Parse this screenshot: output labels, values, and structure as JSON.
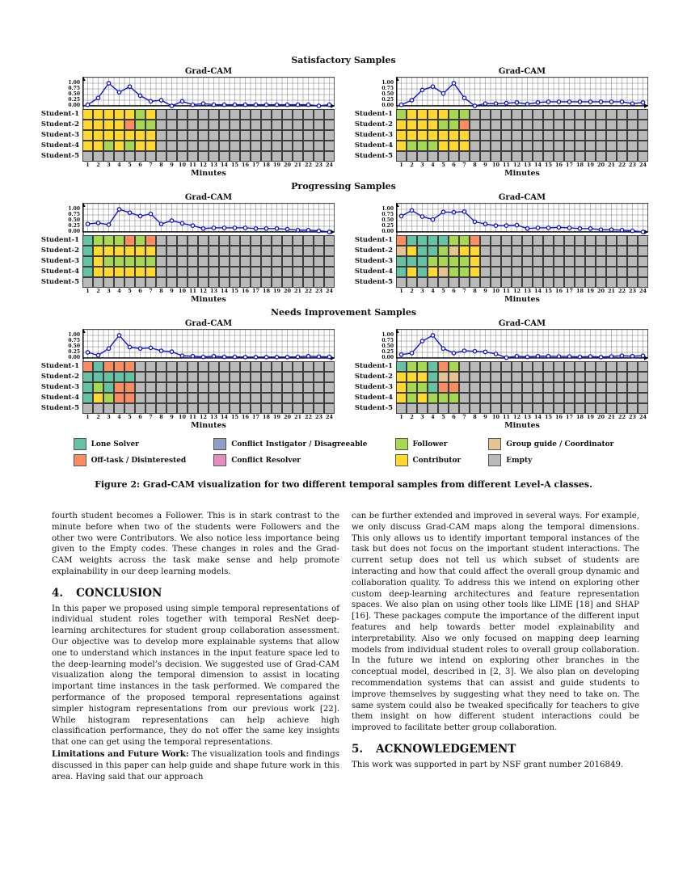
{
  "roles": {
    "LS": {
      "label": "Lone Solver",
      "color": "#66c2a5"
    },
    "OT": {
      "label": "Off-task / Disinterested",
      "color": "#fc8d62"
    },
    "CI": {
      "label": "Conflict Instigator / Disagreeable",
      "color": "#8da0cb"
    },
    "CR": {
      "label": "Conflict Resolver",
      "color": "#e78ac3"
    },
    "F": {
      "label": "Follower",
      "color": "#a6d854"
    },
    "C": {
      "label": "Contributor",
      "color": "#ffd92f"
    },
    "G": {
      "label": "Group guide / Coordinator",
      "color": "#e5c494"
    },
    "E": {
      "label": "Empty",
      "color": "#b9b9b9"
    }
  },
  "legend_columns": [
    [
      "LS",
      "OT"
    ],
    [
      "CI",
      "CR"
    ],
    [
      "F",
      "C"
    ],
    [
      "G",
      "E"
    ]
  ],
  "figure": {
    "sections": [
      {
        "header": "Satisfactory Samples"
      },
      {
        "header": "Progressing Samples"
      },
      {
        "header": "Needs Improvement Samples"
      }
    ]
  },
  "chart_data": [
    {
      "type": "line+heatmap",
      "panel": "satisfactory-left",
      "title": "Grad-CAM",
      "xlabel": "Minutes",
      "x": [
        1,
        2,
        3,
        4,
        5,
        6,
        7,
        8,
        9,
        10,
        11,
        12,
        13,
        14,
        15,
        16,
        17,
        18,
        19,
        20,
        21,
        22,
        23,
        24
      ],
      "y_ticks": [
        "1.00",
        "0.75",
        "0.50",
        "0.25",
        "0.00"
      ],
      "ylim": [
        0,
        1.25
      ],
      "line": [
        0.05,
        0.35,
        1.0,
        0.6,
        0.85,
        0.45,
        0.2,
        0.25,
        0.0,
        0.2,
        0.05,
        0.1,
        0.05,
        0.05,
        0.05,
        0.05,
        0.05,
        0.05,
        0.05,
        0.05,
        0.05,
        0.05,
        0.0,
        0.05
      ],
      "students": [
        "Student-1",
        "Student-2",
        "Student-3",
        "Student-4",
        "Student-5"
      ],
      "grid": [
        "C C C C C F C E E E E E E E E E E E E E E E E E",
        "C C C C OT F F E E E E E E E E E E E E E E E E E",
        "C C C C C C C E E E E E E E E E E E E E E E E E",
        "C C F C F C C E E E E E E E E E E E E E E E E E",
        "E E E E E E E E E E E E E E E E E E E E E E E E"
      ]
    },
    {
      "type": "line+heatmap",
      "panel": "satisfactory-right",
      "title": "Grad-CAM",
      "xlabel": "Minutes",
      "x": [
        1,
        2,
        3,
        4,
        5,
        6,
        7,
        8,
        9,
        10,
        11,
        12,
        13,
        14,
        15,
        16,
        17,
        18,
        19,
        20,
        21,
        22,
        23,
        24
      ],
      "y_ticks": [
        "1.00",
        "0.75",
        "0.50",
        "0.25",
        "0.00"
      ],
      "ylim": [
        0,
        1.25
      ],
      "line": [
        0.05,
        0.25,
        0.7,
        0.85,
        0.55,
        1.0,
        0.35,
        0.0,
        0.1,
        0.1,
        0.12,
        0.15,
        0.08,
        0.15,
        0.18,
        0.18,
        0.18,
        0.18,
        0.18,
        0.18,
        0.18,
        0.18,
        0.1,
        0.15
      ],
      "students": [
        "Student-1",
        "Student-2",
        "Student-3",
        "Student-4",
        "Student-5"
      ],
      "grid": [
        "F C C C C F F E E E E E E E E E E E E E E E E E",
        "C C C C F F OT E E E E E E E E E E E E E E E E E",
        "C C C C C C C E E E E E E E E E E E E E E E E E",
        "C F F F C C C E E E E E E E E E E E E E E E E E",
        "E E E E E E E E E E E E E E E E E E E E E E E E"
      ]
    },
    {
      "type": "line+heatmap",
      "panel": "progressing-left",
      "title": "Grad-CAM",
      "xlabel": "Minutes",
      "x": [
        1,
        2,
        3,
        4,
        5,
        6,
        7,
        8,
        9,
        10,
        11,
        12,
        13,
        14,
        15,
        16,
        17,
        18,
        19,
        20,
        21,
        22,
        23,
        24
      ],
      "y_ticks": [
        "1.00",
        "0.75",
        "0.50",
        "0.25",
        "0.00"
      ],
      "ylim": [
        0,
        1.25
      ],
      "line": [
        0.35,
        0.4,
        0.32,
        1.0,
        0.85,
        0.7,
        0.8,
        0.35,
        0.5,
        0.38,
        0.28,
        0.15,
        0.18,
        0.18,
        0.18,
        0.18,
        0.15,
        0.15,
        0.15,
        0.12,
        0.08,
        0.08,
        0.05,
        0.0
      ],
      "students": [
        "Student-1",
        "Student-2",
        "Student-3",
        "Student-4",
        "Student-5"
      ],
      "grid": [
        "LS F F F OT F OT E E E E E E E E E E E E E E E E E",
        "LS C C C C C C E E E E E E E E E E E E E E E E E",
        "LS C F F F F F E E E E E E E E E E E E E E E E E",
        "LS C C C C C C E E E E E E E E E E E E E E E E E",
        "E E E E E E E E E E E E E E E E E E E E E E E E"
      ]
    },
    {
      "type": "line+heatmap",
      "panel": "progressing-right",
      "title": "Grad-CAM",
      "xlabel": "Minutes",
      "x": [
        1,
        2,
        3,
        4,
        5,
        6,
        7,
        8,
        9,
        10,
        11,
        12,
        13,
        14,
        15,
        16,
        17,
        18,
        19,
        20,
        21,
        22,
        23,
        24
      ],
      "y_ticks": [
        "1.00",
        "0.75",
        "0.50",
        "0.25",
        "0.00"
      ],
      "ylim": [
        0,
        1.25
      ],
      "line": [
        0.7,
        0.95,
        0.68,
        0.55,
        0.88,
        0.87,
        0.9,
        0.45,
        0.35,
        0.28,
        0.28,
        0.3,
        0.15,
        0.18,
        0.18,
        0.2,
        0.18,
        0.15,
        0.15,
        0.1,
        0.1,
        0.08,
        0.05,
        0.0
      ],
      "students": [
        "Student-1",
        "Student-2",
        "Student-3",
        "Student-4",
        "Student-5"
      ],
      "grid": [
        "OT LS LS LS LS F F OT E E E E E E E E E E E E E E E E",
        "G C LS LS F G C C E E E E E E E E E E E E E E E E",
        "LS LS LS F F F F C E E E E E E E E E E E E E E E E",
        "LS C LS C G F F C E E E E E E E E E E E E E E E E",
        "E E E E E E E E E E E E E E E E E E E E E E E E"
      ]
    },
    {
      "type": "line+heatmap",
      "panel": "needs-improvement-left",
      "title": "Grad-CAM",
      "xlabel": "Minutes",
      "x": [
        1,
        2,
        3,
        4,
        5,
        6,
        7,
        8,
        9,
        10,
        11,
        12,
        13,
        14,
        15,
        16,
        17,
        18,
        19,
        20,
        21,
        22,
        23,
        24
      ],
      "y_ticks": [
        "1.00",
        "0.75",
        "0.50",
        "0.25",
        "0.00"
      ],
      "ylim": [
        0,
        1.25
      ],
      "line": [
        0.25,
        0.12,
        0.42,
        1.0,
        0.48,
        0.42,
        0.45,
        0.32,
        0.28,
        0.1,
        0.08,
        0.05,
        0.08,
        0.05,
        0.05,
        0.04,
        0.04,
        0.04,
        0.04,
        0.04,
        0.05,
        0.08,
        0.06,
        0.05
      ],
      "students": [
        "Student-1",
        "Student-2",
        "Student-3",
        "Student-4",
        "Student-5"
      ],
      "grid": [
        "OT LS OT OT OT E E E E E E E E E E E E E E E E E E E",
        "LS LS LS LS LS E E E E E E E E E E E E E E E E E E E",
        "LS F LS OT OT E E E E E E E E E E E E E E E E E E E",
        "LS C F OT OT E E E E E E E E E E E E E E E E E E E",
        "E E E E E E E E E E E E E E E E E E E E E E E E"
      ]
    },
    {
      "type": "line+heatmap",
      "panel": "needs-improvement-right",
      "title": "Grad-CAM",
      "xlabel": "Minutes",
      "x": [
        1,
        2,
        3,
        4,
        5,
        6,
        7,
        8,
        9,
        10,
        11,
        12,
        13,
        14,
        15,
        16,
        17,
        18,
        19,
        20,
        21,
        22,
        23,
        24
      ],
      "y_ticks": [
        "1.00",
        "0.75",
        "0.50",
        "0.25",
        "0.00"
      ],
      "ylim": [
        0,
        1.25
      ],
      "line": [
        0.15,
        0.22,
        0.75,
        1.0,
        0.42,
        0.22,
        0.32,
        0.3,
        0.27,
        0.18,
        0.02,
        0.08,
        0.05,
        0.08,
        0.08,
        0.07,
        0.07,
        0.05,
        0.07,
        0.04,
        0.07,
        0.1,
        0.08,
        0.1
      ],
      "students": [
        "Student-1",
        "Student-2",
        "Student-3",
        "Student-4",
        "Student-5"
      ],
      "grid": [
        "LS F F LS OT F E E E E E E E E E E E E E E E E E E",
        "C C C LS G G E E E E E E E E E E E E E E E E E E",
        "C F F LS OT OT E E E E E E E E E E E E E E E E E E",
        "C F C F F F E E E E E E E E E E E E E E E E E E",
        "E E E E E E E E E E E E E E E E E E E E E E E E"
      ]
    }
  ],
  "caption": "Figure 2: Grad-CAM visualization for two different temporal samples from different Level-A classes.",
  "body": {
    "left": {
      "para1": "fourth student becomes a Follower. This is in stark contrast to the minute before when two of the students were Followers and the other two were Contributors. We also notice less importance being given to the Empty codes. These changes in roles and the Grad-CAM weights across the task make sense and help promote explainability in our deep learning models.",
      "heading_num": "4.",
      "heading_title": "CONCLUSION",
      "para2": "In this paper we proposed using simple temporal representations of individual student roles together with temporal ResNet deep-learning architectures for student group collaboration assessment. Our objective was to develop more explainable systems that allow one to understand which instances in the input feature space led to the deep-learning model’s decision. We suggested use of Grad-CAM visualization along the temporal dimension to assist in locating important time instances in the task performed. We compared the performance of the proposed temporal representations against simpler histogram representations from our previous work [22]. While histogram representations can help achieve high classification performance, they do not offer the same key insights that one can get using the temporal representations.",
      "limitations_label": "Limitations and Future Work:",
      "limitations_text": " The visualization tools and findings discussed in this paper can help guide and shape future work in this area. Having said that our approach"
    },
    "right": {
      "para1": "can be further extended and improved in several ways. For example, we only discuss Grad-CAM maps along the temporal dimensions. This only allows us to identify important temporal instances of the task but does not focus on the important student interactions. The current setup does not tell us which subset of students are interacting and how that could affect the overall group dynamic and collaboration quality. To address this we intend on exploring other custom deep-learning architectures and feature representation spaces. We also plan on using other tools like LIME [18] and SHAP [16]. These packages compute the importance of the different input features and help towards better model explainability and interpretability. Also we only focused on mapping deep learning models from individual student roles to overall group collaboration. In the future we intend on exploring other branches in the conceptual model, described in [2, 3]. We also plan on developing recommendation systems that can assist and guide students to improve themselves by suggesting what they need to take on. The same system could also be tweaked specifically for teachers to give them insight on how different student interactions could be improved to facilitate better group collaboration.",
      "heading_num": "5.",
      "heading_title": "ACKNOWLEDGEMENT",
      "para2": "This work was supported in part by NSF grant number 2016849."
    }
  }
}
